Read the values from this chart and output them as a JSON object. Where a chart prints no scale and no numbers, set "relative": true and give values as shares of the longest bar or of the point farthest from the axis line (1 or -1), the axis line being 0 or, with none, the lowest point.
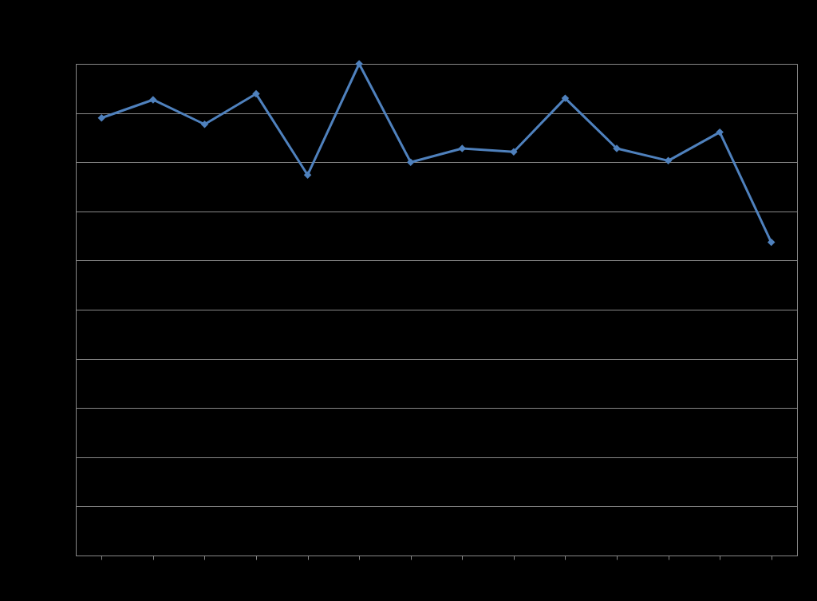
{
  "chart_data": {
    "type": "line",
    "relative": true,
    "categories": [
      null,
      null,
      null,
      null,
      null,
      null,
      null,
      null,
      null,
      null,
      null,
      null,
      null,
      null
    ],
    "series": [
      {
        "color": "#4f81bd",
        "values": [
          0.89,
          0.927,
          0.877,
          0.939,
          0.774,
          1,
          0.8,
          0.828,
          0.821,
          0.93,
          0.828,
          0.803,
          0.861,
          0.637
        ]
      }
    ],
    "marker": "diamond",
    "line_style": "solid",
    "grid": "y"
  }
}
